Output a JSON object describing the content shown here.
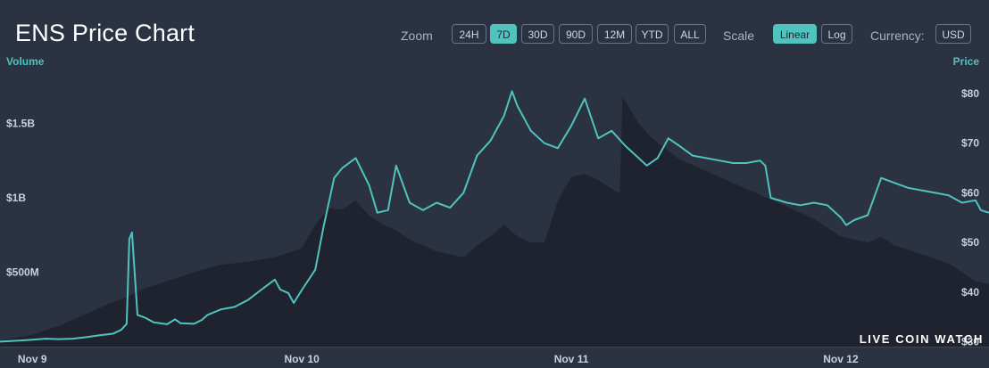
{
  "header": {
    "title": "ENS Price Chart",
    "zoom_label": "Zoom",
    "zoom_options": [
      "24H",
      "7D",
      "30D",
      "90D",
      "12M",
      "YTD",
      "ALL"
    ],
    "zoom_selected": "7D",
    "scale_label": "Scale",
    "scale_options": [
      "Linear",
      "Log"
    ],
    "scale_selected": "Linear",
    "currency_label": "Currency:",
    "currency_value": "USD"
  },
  "brand": "LIVE COIN WATCH",
  "colors": {
    "price_line": "#4fc4bf",
    "volume_area": "#1f2330",
    "background": "#2b3242",
    "accent": "#4fc4bf"
  },
  "chart_data": {
    "type": "line",
    "x_axis": {
      "ticks": [
        "Nov 9",
        "Nov 10",
        "Nov 11",
        "Nov 12"
      ],
      "tick_positions_days": [
        0,
        1,
        2,
        3
      ],
      "range_days": [
        -0.12,
        3.55
      ]
    },
    "left_axis": {
      "title": "Volume",
      "ticks": [
        "$500M",
        "$1B",
        "$1.5B"
      ],
      "tick_values": [
        500000000,
        1000000000,
        1500000000
      ],
      "range": [
        0,
        1850000000
      ]
    },
    "right_axis": {
      "title": "Price",
      "ticks": [
        "$30",
        "$40",
        "$50",
        "$60",
        "$70",
        "$80"
      ],
      "tick_values": [
        30,
        40,
        50,
        60,
        70,
        80
      ],
      "range": [
        29,
        84.5
      ]
    },
    "grid": false,
    "series": [
      {
        "kind": "price",
        "axis": "right",
        "points": [
          [
            -0.12,
            30.0
          ],
          [
            -0.05,
            30.2
          ],
          [
            0.0,
            30.4
          ],
          [
            0.05,
            30.6
          ],
          [
            0.1,
            30.5
          ],
          [
            0.15,
            30.6
          ],
          [
            0.2,
            30.9
          ],
          [
            0.25,
            31.3
          ],
          [
            0.3,
            31.6
          ],
          [
            0.33,
            32.4
          ],
          [
            0.35,
            33.6
          ],
          [
            0.36,
            50.7
          ],
          [
            0.37,
            52.0
          ],
          [
            0.38,
            43.5
          ],
          [
            0.39,
            35.4
          ],
          [
            0.42,
            34.8
          ],
          [
            0.45,
            33.9
          ],
          [
            0.5,
            33.5
          ],
          [
            0.53,
            34.5
          ],
          [
            0.55,
            33.7
          ],
          [
            0.6,
            33.6
          ],
          [
            0.63,
            34.4
          ],
          [
            0.65,
            35.4
          ],
          [
            0.7,
            36.5
          ],
          [
            0.75,
            37.0
          ],
          [
            0.8,
            38.4
          ],
          [
            0.85,
            40.5
          ],
          [
            0.9,
            42.5
          ],
          [
            0.92,
            40.5
          ],
          [
            0.95,
            39.8
          ],
          [
            0.97,
            37.8
          ],
          [
            1.0,
            40.4
          ],
          [
            1.05,
            44.5
          ],
          [
            1.08,
            53.0
          ],
          [
            1.12,
            63.0
          ],
          [
            1.15,
            65.0
          ],
          [
            1.2,
            67.0
          ],
          [
            1.25,
            61.5
          ],
          [
            1.28,
            56.0
          ],
          [
            1.32,
            56.5
          ],
          [
            1.35,
            65.5
          ],
          [
            1.4,
            58.0
          ],
          [
            1.45,
            56.5
          ],
          [
            1.5,
            58.0
          ],
          [
            1.55,
            57.0
          ],
          [
            1.6,
            60.0
          ],
          [
            1.65,
            67.5
          ],
          [
            1.7,
            70.5
          ],
          [
            1.75,
            75.5
          ],
          [
            1.78,
            80.5
          ],
          [
            1.8,
            77.5
          ],
          [
            1.85,
            72.5
          ],
          [
            1.9,
            70.0
          ],
          [
            1.95,
            69.0
          ],
          [
            2.0,
            73.5
          ],
          [
            2.05,
            79.0
          ],
          [
            2.1,
            71.0
          ],
          [
            2.15,
            72.5
          ],
          [
            2.2,
            69.5
          ],
          [
            2.25,
            67.0
          ],
          [
            2.28,
            65.5
          ],
          [
            2.32,
            67.0
          ],
          [
            2.36,
            71.0
          ],
          [
            2.4,
            69.5
          ],
          [
            2.45,
            67.5
          ],
          [
            2.5,
            67.0
          ],
          [
            2.55,
            66.5
          ],
          [
            2.6,
            66.0
          ],
          [
            2.65,
            66.0
          ],
          [
            2.7,
            66.5
          ],
          [
            2.72,
            65.5
          ],
          [
            2.74,
            59.0
          ],
          [
            2.8,
            58.0
          ],
          [
            2.85,
            57.5
          ],
          [
            2.9,
            58.0
          ],
          [
            2.95,
            57.5
          ],
          [
            3.0,
            55.0
          ],
          [
            3.02,
            53.5
          ],
          [
            3.05,
            54.5
          ],
          [
            3.1,
            55.5
          ],
          [
            3.15,
            63.0
          ],
          [
            3.2,
            62.0
          ],
          [
            3.25,
            61.0
          ],
          [
            3.3,
            60.5
          ],
          [
            3.35,
            60.0
          ],
          [
            3.4,
            59.5
          ],
          [
            3.45,
            58.0
          ],
          [
            3.5,
            58.5
          ],
          [
            3.52,
            56.5
          ],
          [
            3.55,
            56.0
          ]
        ]
      },
      {
        "kind": "volume",
        "axis": "left",
        "points": [
          [
            -0.12,
            0.04
          ],
          [
            0.0,
            0.08
          ],
          [
            0.1,
            0.14
          ],
          [
            0.2,
            0.22
          ],
          [
            0.3,
            0.3
          ],
          [
            0.35,
            0.33
          ],
          [
            0.4,
            0.38
          ],
          [
            0.5,
            0.44
          ],
          [
            0.6,
            0.5
          ],
          [
            0.7,
            0.55
          ],
          [
            0.8,
            0.57
          ],
          [
            0.9,
            0.6
          ],
          [
            1.0,
            0.66
          ],
          [
            1.05,
            0.82
          ],
          [
            1.1,
            0.93
          ],
          [
            1.15,
            0.92
          ],
          [
            1.2,
            0.98
          ],
          [
            1.25,
            0.88
          ],
          [
            1.3,
            0.82
          ],
          [
            1.35,
            0.78
          ],
          [
            1.4,
            0.72
          ],
          [
            1.45,
            0.68
          ],
          [
            1.5,
            0.64
          ],
          [
            1.55,
            0.62
          ],
          [
            1.6,
            0.6
          ],
          [
            1.65,
            0.68
          ],
          [
            1.7,
            0.74
          ],
          [
            1.75,
            0.82
          ],
          [
            1.8,
            0.74
          ],
          [
            1.85,
            0.7
          ],
          [
            1.9,
            0.7
          ],
          [
            1.95,
            0.98
          ],
          [
            2.0,
            1.14
          ],
          [
            2.05,
            1.16
          ],
          [
            2.1,
            1.12
          ],
          [
            2.15,
            1.06
          ],
          [
            2.18,
            1.03
          ],
          [
            2.19,
            1.68
          ],
          [
            2.25,
            1.5
          ],
          [
            2.3,
            1.4
          ],
          [
            2.4,
            1.26
          ],
          [
            2.5,
            1.18
          ],
          [
            2.6,
            1.1
          ],
          [
            2.7,
            1.02
          ],
          [
            2.8,
            0.94
          ],
          [
            2.9,
            0.86
          ],
          [
            3.0,
            0.74
          ],
          [
            3.1,
            0.7
          ],
          [
            3.15,
            0.74
          ],
          [
            3.2,
            0.68
          ],
          [
            3.3,
            0.62
          ],
          [
            3.4,
            0.56
          ],
          [
            3.5,
            0.44
          ],
          [
            3.55,
            0.42
          ]
        ]
      }
    ]
  }
}
